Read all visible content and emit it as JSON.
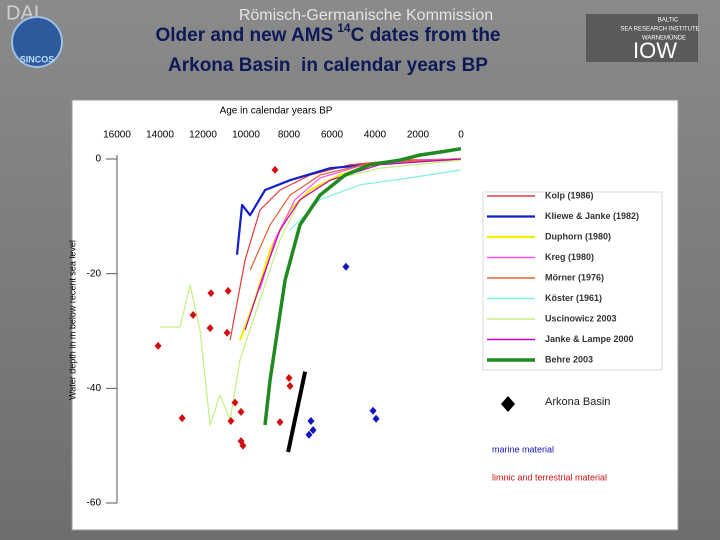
{
  "header": {
    "left_logo": "DAI",
    "left_badge": "SINCOS",
    "institution": "Römisch-Germanische Kommission",
    "title": [
      "Older and new AMS",
      "14",
      "C dates from the",
      "Arkona Basin  in calendar years BP"
    ],
    "right_logo": [
      "BALTIC",
      "SEA RESEARCH INSTITUTE",
      "WARNEMÜNDE",
      "IOW"
    ]
  },
  "chart_data": {
    "type": "line",
    "x_label": "Age in calendar years BP",
    "y_label": "Water depth in m below recent sea level",
    "xlim": [
      16000,
      0
    ],
    "xticks": [
      16000,
      14000,
      12000,
      10000,
      8000,
      6000,
      4000,
      2000,
      0
    ],
    "ylim": [
      -60,
      0
    ],
    "yticks": [
      0,
      -20,
      -40,
      -60
    ],
    "series": [
      {
        "name": "Kolp (1986)",
        "color": "#e03c3c",
        "x": [
          10740,
          10040,
          9350,
          8420,
          7020,
          5160,
          2840,
          0
        ],
        "values": [
          -31.6,
          -17.6,
          -8.9,
          -5.4,
          -2.8,
          -1.0,
          -0.2,
          0
        ]
      },
      {
        "name": "Kliewe & Janke (1982)",
        "color": "#1020c8",
        "x": [
          10420,
          10180,
          9810,
          9110,
          7950,
          6090,
          2840,
          0
        ],
        "values": [
          -16.7,
          -8.0,
          -9.8,
          -5.4,
          -3.7,
          -1.6,
          -0.5,
          0
        ]
      },
      {
        "name": "Duphorn (1980)",
        "color": "#f2f000",
        "x": [
          10280,
          9580,
          8880,
          7950,
          7020,
          5630,
          3770,
          0
        ],
        "values": [
          -31.6,
          -24.6,
          -15.9,
          -8.9,
          -5.4,
          -2.8,
          -0.7,
          0
        ]
      },
      {
        "name": "Kreg (1980)",
        "color": "#ff50ff",
        "x": [
          9350,
          8650,
          7720,
          6560,
          4700,
          1910,
          0
        ],
        "values": [
          -22.8,
          -14.1,
          -7.1,
          -3.3,
          -1.2,
          -0.2,
          0
        ]
      },
      {
        "name": "Mörner (1976)",
        "color": "#e06030",
        "x": [
          9810,
          8880,
          7950,
          6560,
          4230,
          0
        ],
        "values": [
          -19.4,
          -11.5,
          -6.3,
          -2.8,
          -0.7,
          0
        ]
      },
      {
        "name": "Köster (1961)",
        "color": "#80f0dc",
        "x": [
          7950,
          6560,
          4700,
          2370,
          0
        ],
        "values": [
          -12.4,
          -7.1,
          -4.5,
          -3.3,
          -1.9
        ]
      },
      {
        "name": "Uscinowicz 2003",
        "color": "#c4f080",
        "x": [
          14000,
          13070,
          12600,
          12140,
          11670,
          11210,
          10740,
          10280,
          9350,
          8420,
          7490,
          6090,
          3770,
          0
        ],
        "values": [
          -29.3,
          -29.3,
          -22.0,
          -29.8,
          -46.4,
          -41.2,
          -45.5,
          -35.0,
          -24.6,
          -14.1,
          -7.1,
          -3.7,
          -1.6,
          -0.2
        ]
      },
      {
        "name": "Janke & Lampe 2000",
        "color": "#c000c0",
        "x": [
          10040,
          9350,
          8420,
          7490,
          6090,
          3770,
          0
        ],
        "values": [
          -29.8,
          -22.0,
          -12.4,
          -7.1,
          -3.7,
          -1.0,
          0
        ]
      },
      {
        "name": "Behre 2003",
        "color": "#208a20",
        "x": [
          9114,
          8880,
          8180,
          7490,
          6560,
          5390,
          4230,
          2840,
          1900,
          980,
          0
        ],
        "values": [
          -46.4,
          -38.5,
          -21.1,
          -11.5,
          -6.3,
          -2.8,
          -1.0,
          -0.2,
          0.7,
          1.2,
          1.8
        ]
      }
    ],
    "scatter_legend": "Arkona Basin",
    "arkona_line": {
      "color": "#000000",
      "x": [
        7250,
        8040
      ],
      "values": [
        -37.1,
        -51.1
      ]
    },
    "points": [
      {
        "name": "marine material",
        "color": "#1414c0",
        "x": [
          5350,
          6980,
          6880,
          7070,
          4090,
          3950
        ],
        "values": [
          -18.8,
          -45.7,
          -47.3,
          -48.1,
          -43.9,
          -45.3
        ]
      },
      {
        "name": "limnic and terrestrial material",
        "color": "#d01010",
        "x": [
          8650,
          11630,
          10830,
          12460,
          11670,
          10880,
          14090,
          12970,
          10510,
          10230,
          10700,
          10230,
          10140,
          8420,
          8000,
          7950
        ],
        "values": [
          -1.9,
          -23.4,
          -23.0,
          -27.2,
          -29.5,
          -30.3,
          -32.6,
          -45.2,
          -42.5,
          -44.1,
          -45.7,
          -49.2,
          -50.0,
          -45.9,
          -38.2,
          -39.6
        ]
      }
    ]
  }
}
